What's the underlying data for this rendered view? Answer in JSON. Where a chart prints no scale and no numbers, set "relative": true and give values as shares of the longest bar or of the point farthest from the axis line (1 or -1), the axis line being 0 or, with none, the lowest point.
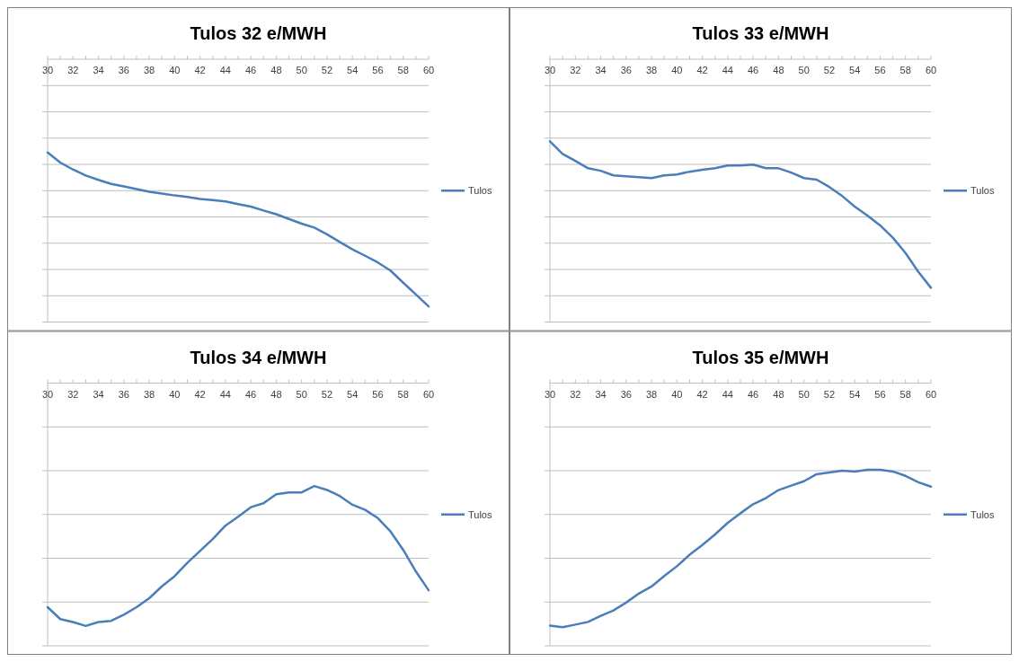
{
  "chart_data": [
    {
      "type": "line",
      "title": "Tulos 32 e/MWH",
      "relative": true,
      "x": [
        30,
        31,
        32,
        33,
        34,
        35,
        36,
        37,
        38,
        39,
        40,
        41,
        42,
        43,
        44,
        45,
        46,
        47,
        48,
        49,
        50,
        51,
        52,
        53,
        54,
        55,
        56,
        57,
        58,
        59,
        60
      ],
      "xlim": [
        30,
        60
      ],
      "xticks": [
        30,
        32,
        34,
        36,
        38,
        40,
        42,
        44,
        46,
        48,
        50,
        52,
        54,
        56,
        58,
        60
      ],
      "grid": "y",
      "legend": "right",
      "series": [
        {
          "name": "Tulos",
          "color": "#4a7ebb",
          "values": [
            -0.377,
            -0.418,
            -0.446,
            -0.47,
            -0.488,
            -0.504,
            -0.514,
            -0.525,
            -0.536,
            -0.543,
            -0.551,
            -0.557,
            -0.565,
            -0.57,
            -0.575,
            -0.586,
            -0.596,
            -0.612,
            -0.627,
            -0.646,
            -0.665,
            -0.681,
            -0.708,
            -0.739,
            -0.769,
            -0.795,
            -0.822,
            -0.855,
            -0.904,
            -0.952,
            -1
          ]
        }
      ]
    },
    {
      "type": "line",
      "title": "Tulos 33 e/MWH",
      "relative": true,
      "x": [
        30,
        31,
        32,
        33,
        34,
        35,
        36,
        37,
        38,
        39,
        40,
        41,
        42,
        43,
        44,
        45,
        46,
        47,
        48,
        49,
        50,
        51,
        52,
        53,
        54,
        55,
        56,
        57,
        58,
        59,
        60
      ],
      "xlim": [
        30,
        60
      ],
      "xticks": [
        30,
        32,
        34,
        36,
        38,
        40,
        42,
        44,
        46,
        48,
        50,
        52,
        54,
        56,
        58,
        60
      ],
      "grid": "y",
      "legend": "right",
      "series": [
        {
          "name": "Tulos",
          "color": "#4a7ebb",
          "values": [
            -0.359,
            -0.414,
            -0.445,
            -0.477,
            -0.488,
            -0.508,
            -0.512,
            -0.516,
            -0.52,
            -0.508,
            -0.504,
            -0.492,
            -0.484,
            -0.477,
            -0.465,
            -0.465,
            -0.461,
            -0.477,
            -0.477,
            -0.496,
            -0.52,
            -0.527,
            -0.559,
            -0.598,
            -0.645,
            -0.684,
            -0.727,
            -0.781,
            -0.848,
            -0.93,
            -1
          ]
        }
      ]
    },
    {
      "type": "line",
      "title": "Tulos 34 e/MWH",
      "relative": true,
      "x": [
        30,
        31,
        32,
        33,
        34,
        35,
        36,
        37,
        38,
        39,
        40,
        41,
        42,
        43,
        44,
        45,
        46,
        47,
        48,
        49,
        50,
        51,
        52,
        53,
        54,
        55,
        56,
        57,
        58,
        59,
        60
      ],
      "xlim": [
        30,
        60
      ],
      "xticks": [
        30,
        32,
        34,
        36,
        38,
        40,
        42,
        44,
        46,
        48,
        50,
        52,
        54,
        56,
        58,
        60
      ],
      "grid": "y",
      "legend": "right",
      "series": [
        {
          "name": "Tulos",
          "color": "#4a7ebb",
          "values": [
            -0.923,
            -0.972,
            -0.984,
            -1,
            -0.984,
            -0.979,
            -0.954,
            -0.923,
            -0.886,
            -0.837,
            -0.795,
            -0.74,
            -0.691,
            -0.642,
            -0.587,
            -0.55,
            -0.511,
            -0.495,
            -0.458,
            -0.45,
            -0.45,
            -0.424,
            -0.44,
            -0.465,
            -0.501,
            -0.522,
            -0.556,
            -0.611,
            -0.687,
            -0.776,
            -0.853
          ]
        }
      ]
    },
    {
      "type": "line",
      "title": "Tulos 35 e/MWH",
      "relative": true,
      "x": [
        30,
        31,
        32,
        33,
        34,
        35,
        36,
        37,
        38,
        39,
        40,
        41,
        42,
        43,
        44,
        45,
        46,
        47,
        48,
        49,
        50,
        51,
        52,
        53,
        54,
        55,
        56,
        57,
        58,
        59,
        60
      ],
      "xlim": [
        30,
        60
      ],
      "xticks": [
        30,
        32,
        34,
        36,
        38,
        40,
        42,
        44,
        46,
        48,
        50,
        52,
        54,
        56,
        58,
        60
      ],
      "grid": "y",
      "legend": "right",
      "series": [
        {
          "name": "Tulos",
          "color": "#4a7ebb",
          "values": [
            -0.993,
            -1,
            -0.989,
            -0.978,
            -0.953,
            -0.931,
            -0.899,
            -0.862,
            -0.833,
            -0.79,
            -0.75,
            -0.703,
            -0.663,
            -0.62,
            -0.572,
            -0.533,
            -0.496,
            -0.471,
            -0.438,
            -0.42,
            -0.402,
            -0.373,
            -0.366,
            -0.359,
            -0.362,
            -0.355,
            -0.355,
            -0.362,
            -0.38,
            -0.406,
            -0.424
          ]
        }
      ]
    }
  ]
}
